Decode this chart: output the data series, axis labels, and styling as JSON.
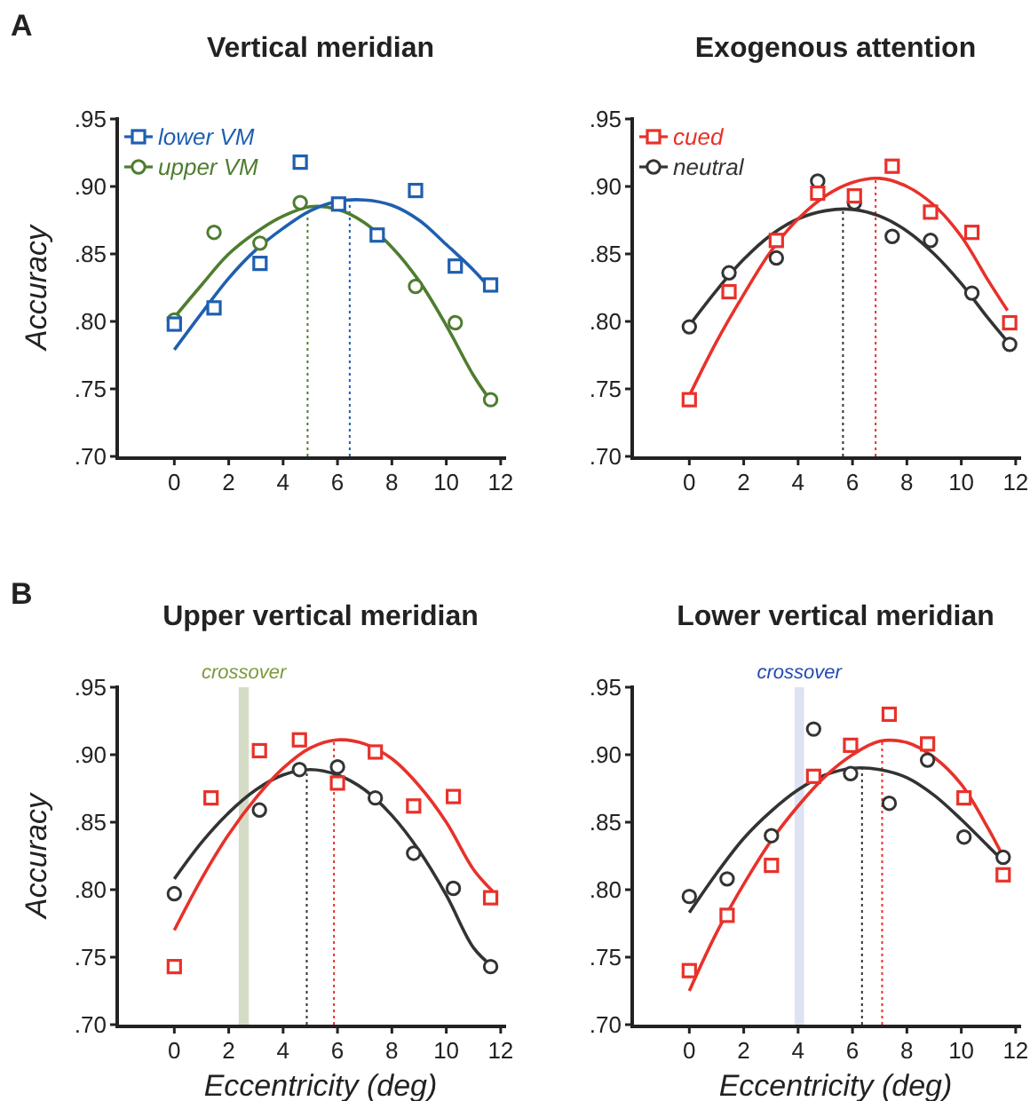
{
  "chart_data": [
    {
      "type": "scatter",
      "title": "Vertical meridian",
      "ylabel": "Accuracy",
      "annotations": [
        "A"
      ],
      "xlim": [
        -2.1,
        12.2
      ],
      "xticks": [
        0,
        2,
        4,
        6,
        8,
        10,
        12
      ],
      "ylim": [
        0.7,
        0.95
      ],
      "yticks": [
        {
          "value": 0.7,
          "label": ".70"
        },
        {
          "value": 0.75,
          "label": ".75"
        },
        {
          "value": 0.8,
          "label": ".80"
        },
        {
          "value": 0.85,
          "label": ".85"
        },
        {
          "value": 0.9,
          "label": ".90"
        },
        {
          "value": 0.95,
          "label": ".95"
        }
      ],
      "legend": "top left",
      "grid": false,
      "series": [
        {
          "name": "lower VM",
          "marker": "square",
          "color": "#1f5fb0",
          "x": [
            0,
            1.46,
            3.15,
            4.63,
            6.04,
            7.46,
            8.87,
            10.33,
            11.63
          ],
          "values": [
            0.798,
            0.81,
            0.843,
            0.918,
            0.887,
            0.864,
            0.897,
            0.841,
            0.827
          ]
        },
        {
          "name": "upper VM",
          "marker": "circle",
          "color": "#4e7d2f",
          "x": [
            0,
            1.46,
            3.15,
            4.63,
            6.04,
            7.46,
            8.87,
            10.33,
            11.63
          ],
          "values": [
            0.801,
            0.866,
            0.858,
            0.888,
            null,
            null,
            0.826,
            0.799,
            0.742
          ]
        },
        {
          "type": "line",
          "marker": "none",
          "color": "#1f5fb0",
          "x": [
            0,
            1,
            2,
            3,
            4,
            5,
            6,
            7,
            8,
            9,
            10,
            11,
            11.5
          ],
          "values": [
            0.779,
            0.806,
            0.832,
            0.853,
            0.869,
            0.882,
            0.889,
            0.89,
            0.886,
            0.875,
            0.857,
            0.838,
            0.827
          ]
        },
        {
          "type": "line",
          "marker": "none",
          "color": "#4e7d2f",
          "x": [
            0,
            1,
            2,
            3,
            4,
            5,
            6,
            7,
            8,
            9,
            10,
            11,
            11.6
          ],
          "values": [
            0.803,
            0.827,
            0.85,
            0.866,
            0.878,
            0.885,
            0.883,
            0.873,
            0.855,
            0.83,
            0.797,
            0.76,
            0.742
          ]
        }
      ],
      "ref_lines": [
        {
          "axis": "x",
          "value": 4.9,
          "color": "#4e7d2f",
          "line_style": "dotted"
        },
        {
          "axis": "x",
          "value": 6.45,
          "color": "#1f5fb0",
          "line_style": "dotted"
        }
      ]
    },
    {
      "type": "scatter",
      "title": "Exogenous attention",
      "xlim": [
        -2.1,
        12.2
      ],
      "xticks": [
        0,
        2,
        4,
        6,
        8,
        10,
        12
      ],
      "ylim": [
        0.7,
        0.95
      ],
      "yticks": [
        {
          "value": 0.7,
          "label": ".70"
        },
        {
          "value": 0.75,
          "label": ".75"
        },
        {
          "value": 0.8,
          "label": ".80"
        },
        {
          "value": 0.85,
          "label": ".85"
        },
        {
          "value": 0.9,
          "label": ".90"
        },
        {
          "value": 0.95,
          "label": ".95"
        }
      ],
      "legend": "top left",
      "grid": false,
      "series": [
        {
          "name": "cued",
          "marker": "square",
          "color": "#e8312a",
          "x": [
            0,
            1.46,
            3.2,
            4.72,
            6.07,
            7.46,
            8.87,
            10.39,
            11.78
          ],
          "values": [
            0.742,
            0.822,
            0.86,
            0.895,
            0.893,
            0.915,
            0.881,
            0.866,
            0.799
          ]
        },
        {
          "name": "neutral",
          "marker": "circle",
          "color": "#333333",
          "x": [
            0,
            1.46,
            3.2,
            4.72,
            6.07,
            7.46,
            8.87,
            10.39,
            11.78
          ],
          "values": [
            0.796,
            0.836,
            0.847,
            0.904,
            0.888,
            0.863,
            0.86,
            0.821,
            0.783
          ]
        },
        {
          "type": "line",
          "marker": "none",
          "color": "#e8312a",
          "x": [
            0,
            1,
            2,
            3,
            4,
            5,
            6,
            7,
            8,
            9,
            10,
            11,
            11.7
          ],
          "values": [
            0.745,
            0.785,
            0.82,
            0.852,
            0.876,
            0.893,
            0.903,
            0.906,
            0.9,
            0.886,
            0.863,
            0.83,
            0.808
          ]
        },
        {
          "type": "line",
          "marker": "none",
          "color": "#333333",
          "x": [
            0,
            1,
            2,
            3,
            4,
            5,
            6,
            7,
            8,
            9,
            10,
            11,
            11.7
          ],
          "values": [
            0.797,
            0.823,
            0.846,
            0.864,
            0.876,
            0.882,
            0.883,
            0.878,
            0.867,
            0.85,
            0.828,
            0.802,
            0.785
          ]
        }
      ],
      "ref_lines": [
        {
          "axis": "x",
          "value": 5.65,
          "color": "#333333",
          "line_style": "dotted"
        },
        {
          "axis": "x",
          "value": 6.85,
          "color": "#e8312a",
          "line_style": "dotted"
        }
      ]
    },
    {
      "type": "scatter",
      "title": "Upper vertical meridian",
      "xlabel": "Eccentricity (deg)",
      "ylabel": "Accuracy",
      "annotations": [
        "B"
      ],
      "xlim": [
        -2.1,
        12.2
      ],
      "xticks": [
        0,
        2,
        4,
        6,
        8,
        10,
        12
      ],
      "ylim": [
        0.7,
        0.95
      ],
      "yticks": [
        {
          "value": 0.7,
          "label": ".70"
        },
        {
          "value": 0.75,
          "label": ".75"
        },
        {
          "value": 0.8,
          "label": ".80"
        },
        {
          "value": 0.85,
          "label": ".85"
        },
        {
          "value": 0.9,
          "label": ".90"
        },
        {
          "value": 0.95,
          "label": ".95"
        }
      ],
      "grid": false,
      "series": [
        {
          "marker": "square",
          "color": "#e8312a",
          "x": [
            0,
            1.35,
            3.13,
            4.6,
            6.0,
            7.39,
            8.8,
            10.26,
            11.63
          ],
          "values": [
            0.743,
            0.868,
            0.903,
            0.911,
            0.879,
            0.902,
            0.862,
            0.869,
            0.794
          ]
        },
        {
          "marker": "circle",
          "color": "#333333",
          "x": [
            0,
            1.35,
            3.13,
            4.6,
            6.0,
            7.39,
            8.8,
            10.26,
            11.63
          ],
          "values": [
            0.797,
            null,
            0.859,
            0.889,
            0.891,
            0.868,
            0.827,
            0.801,
            0.743
          ]
        },
        {
          "type": "line",
          "marker": "none",
          "color": "#e8312a",
          "x": [
            0,
            1,
            2,
            3,
            4,
            5,
            6,
            7,
            8,
            9,
            10,
            11,
            11.7
          ],
          "values": [
            0.77,
            0.808,
            0.841,
            0.868,
            0.89,
            0.905,
            0.911,
            0.908,
            0.897,
            0.877,
            0.85,
            0.815,
            0.799
          ]
        },
        {
          "type": "line",
          "marker": "none",
          "color": "#333333",
          "x": [
            0,
            1,
            2,
            3,
            4,
            5,
            6,
            7,
            8,
            9,
            10,
            11,
            11.7
          ],
          "values": [
            0.808,
            0.835,
            0.857,
            0.874,
            0.885,
            0.889,
            0.885,
            0.874,
            0.855,
            0.829,
            0.796,
            0.757,
            0.743
          ]
        }
      ],
      "ref_lines": [
        {
          "axis": "x",
          "value": 4.87,
          "color": "#333333",
          "line_style": "dotted"
        },
        {
          "axis": "x",
          "value": 5.87,
          "color": "#e8312a",
          "line_style": "dotted"
        }
      ],
      "bands": [
        {
          "axis": "x",
          "from": 2.37,
          "to": 2.74,
          "label": "crossover",
          "color": "#d5dcc6"
        }
      ]
    },
    {
      "type": "scatter",
      "title": "Lower vertical meridian",
      "xlabel": "Eccentricity (deg)",
      "xlim": [
        -2.1,
        12.2
      ],
      "xticks": [
        0,
        2,
        4,
        6,
        8,
        10,
        12
      ],
      "ylim": [
        0.7,
        0.95
      ],
      "yticks": [
        {
          "value": 0.7,
          "label": ".70"
        },
        {
          "value": 0.75,
          "label": ".75"
        },
        {
          "value": 0.8,
          "label": ".80"
        },
        {
          "value": 0.85,
          "label": ".85"
        },
        {
          "value": 0.9,
          "label": ".90"
        },
        {
          "value": 0.95,
          "label": ".95"
        }
      ],
      "grid": false,
      "series": [
        {
          "marker": "square",
          "color": "#e8312a",
          "x": [
            0,
            1.39,
            3.02,
            4.57,
            5.93,
            7.35,
            8.76,
            10.1,
            11.54
          ],
          "values": [
            0.74,
            0.781,
            0.818,
            0.884,
            0.907,
            0.93,
            0.908,
            0.868,
            0.811
          ]
        },
        {
          "marker": "circle",
          "color": "#333333",
          "x": [
            0,
            1.39,
            3.02,
            4.57,
            5.93,
            7.35,
            8.76,
            10.1,
            11.54
          ],
          "values": [
            0.795,
            0.808,
            0.84,
            0.919,
            0.886,
            0.864,
            0.896,
            0.839,
            0.824
          ]
        },
        {
          "type": "line",
          "marker": "none",
          "color": "#e8312a",
          "x": [
            0,
            1,
            2,
            3,
            4,
            5,
            6,
            7,
            8,
            9,
            10,
            11,
            11.5
          ],
          "values": [
            0.725,
            0.768,
            0.804,
            0.836,
            0.862,
            0.884,
            0.9,
            0.91,
            0.909,
            0.898,
            0.878,
            0.845,
            0.826
          ]
        },
        {
          "type": "line",
          "marker": "none",
          "color": "#333333",
          "x": [
            0,
            1,
            2,
            3,
            4,
            5,
            6,
            7,
            8,
            9,
            10,
            11,
            11.5
          ],
          "values": [
            0.783,
            0.812,
            0.838,
            0.858,
            0.874,
            0.885,
            0.89,
            0.889,
            0.883,
            0.87,
            0.852,
            0.832,
            0.822
          ]
        }
      ],
      "ref_lines": [
        {
          "axis": "x",
          "value": 6.35,
          "color": "#333333",
          "line_style": "dotted"
        },
        {
          "axis": "x",
          "value": 7.09,
          "color": "#e8312a",
          "line_style": "dotted"
        }
      ],
      "bands": [
        {
          "axis": "x",
          "from": 3.87,
          "to": 4.22,
          "label": "crossover",
          "color": "#dde3f3"
        }
      ]
    }
  ]
}
